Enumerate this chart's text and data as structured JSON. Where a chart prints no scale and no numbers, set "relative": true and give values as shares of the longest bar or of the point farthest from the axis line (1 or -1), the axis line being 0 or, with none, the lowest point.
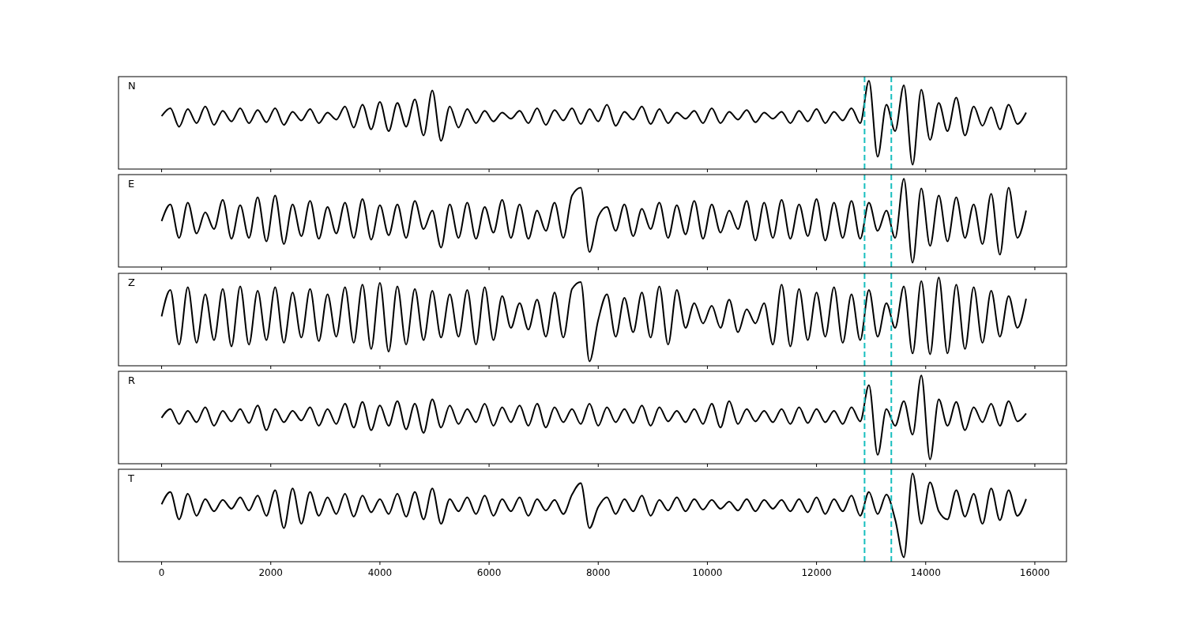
{
  "chart_data": [
    {
      "type": "line",
      "annotations": [
        "N"
      ],
      "relative": true,
      "xlim": [
        -790,
        16580
      ],
      "xticks": [
        0,
        2000,
        4000,
        6000,
        8000,
        10000,
        12000,
        14000,
        16000
      ],
      "tick_labels": false,
      "x": [
        0,
        160,
        320,
        480,
        640,
        800,
        960,
        1120,
        1280,
        1440,
        1600,
        1760,
        1920,
        2080,
        2240,
        2400,
        2560,
        2720,
        2880,
        3040,
        3200,
        3360,
        3520,
        3680,
        3840,
        4000,
        4160,
        4320,
        4480,
        4640,
        4800,
        4960,
        5120,
        5280,
        5440,
        5600,
        5760,
        5920,
        6080,
        6240,
        6400,
        6560,
        6720,
        6880,
        7040,
        7200,
        7360,
        7520,
        7680,
        7840,
        8000,
        8160,
        8320,
        8480,
        8640,
        8800,
        8960,
        9120,
        9280,
        9440,
        9600,
        9760,
        9920,
        10080,
        10240,
        10400,
        10560,
        10720,
        10880,
        11040,
        11200,
        11360,
        11520,
        11680,
        11840,
        12000,
        12160,
        12320,
        12480,
        12640,
        12800,
        12960,
        13120,
        13280,
        13440,
        13600,
        13760,
        13920,
        14080,
        14240,
        14400,
        14560,
        14720,
        14880,
        15040,
        15200,
        15360,
        15520,
        15680,
        15840
      ],
      "series": [
        {
          "color": "#000000",
          "values": [
            0.6,
            0.69,
            0.48,
            0.68,
            0.52,
            0.71,
            0.5,
            0.66,
            0.54,
            0.69,
            0.52,
            0.67,
            0.53,
            0.69,
            0.5,
            0.65,
            0.55,
            0.68,
            0.52,
            0.64,
            0.56,
            0.71,
            0.47,
            0.73,
            0.45,
            0.76,
            0.43,
            0.75,
            0.48,
            0.79,
            0.38,
            0.89,
            0.32,
            0.71,
            0.47,
            0.68,
            0.52,
            0.66,
            0.54,
            0.64,
            0.57,
            0.66,
            0.52,
            0.69,
            0.5,
            0.67,
            0.55,
            0.69,
            0.51,
            0.68,
            0.54,
            0.73,
            0.49,
            0.65,
            0.56,
            0.71,
            0.51,
            0.68,
            0.52,
            0.64,
            0.57,
            0.66,
            0.52,
            0.69,
            0.52,
            0.65,
            0.56,
            0.67,
            0.53,
            0.64,
            0.57,
            0.65,
            0.52,
            0.66,
            0.54,
            0.68,
            0.52,
            0.65,
            0.55,
            0.69,
            0.52,
            1.0,
            0.14,
            0.73,
            0.43,
            0.95,
            0.05,
            0.9,
            0.33,
            0.75,
            0.43,
            0.81,
            0.38,
            0.71,
            0.49,
            0.7,
            0.45,
            0.73,
            0.51,
            0.64
          ]
        }
      ],
      "ref_lines": [
        {
          "axis": "x",
          "value": 12880,
          "color": "#17bebe",
          "line_style": "dashed"
        },
        {
          "axis": "x",
          "value": 13370,
          "color": "#17bebe",
          "line_style": "dashed"
        }
      ]
    },
    {
      "type": "line",
      "annotations": [
        "E"
      ],
      "relative": true,
      "xlim": [
        -790,
        16580
      ],
      "xticks": [
        0,
        2000,
        4000,
        6000,
        8000,
        10000,
        12000,
        14000,
        16000
      ],
      "tick_labels": false,
      "x": [
        0,
        160,
        320,
        480,
        640,
        800,
        960,
        1120,
        1280,
        1440,
        1600,
        1760,
        1920,
        2080,
        2240,
        2400,
        2560,
        2720,
        2880,
        3040,
        3200,
        3360,
        3520,
        3680,
        3840,
        4000,
        4160,
        4320,
        4480,
        4640,
        4800,
        4960,
        5120,
        5280,
        5440,
        5600,
        5760,
        5920,
        6080,
        6240,
        6400,
        6560,
        6720,
        6880,
        7040,
        7200,
        7360,
        7520,
        7680,
        7840,
        8000,
        8160,
        8320,
        8480,
        8640,
        8800,
        8960,
        9120,
        9280,
        9440,
        9600,
        9760,
        9920,
        10080,
        10240,
        10400,
        10560,
        10720,
        10880,
        11040,
        11200,
        11360,
        11520,
        11680,
        11840,
        12000,
        12160,
        12320,
        12480,
        12640,
        12800,
        12960,
        13120,
        13280,
        13440,
        13600,
        13760,
        13920,
        14080,
        14240,
        14400,
        14560,
        14720,
        14880,
        15040,
        15200,
        15360,
        15520,
        15680,
        15840
      ],
      "series": [
        {
          "color": "#000000",
          "values": [
            0.52,
            0.71,
            0.33,
            0.73,
            0.38,
            0.62,
            0.43,
            0.76,
            0.32,
            0.7,
            0.33,
            0.79,
            0.29,
            0.81,
            0.26,
            0.71,
            0.35,
            0.75,
            0.32,
            0.68,
            0.38,
            0.73,
            0.33,
            0.77,
            0.31,
            0.7,
            0.36,
            0.71,
            0.33,
            0.75,
            0.43,
            0.64,
            0.22,
            0.71,
            0.33,
            0.73,
            0.32,
            0.68,
            0.39,
            0.76,
            0.33,
            0.71,
            0.32,
            0.64,
            0.41,
            0.73,
            0.33,
            0.81,
            0.9,
            0.17,
            0.57,
            0.68,
            0.41,
            0.71,
            0.35,
            0.66,
            0.43,
            0.73,
            0.33,
            0.7,
            0.37,
            0.75,
            0.32,
            0.71,
            0.39,
            0.64,
            0.43,
            0.75,
            0.3,
            0.73,
            0.33,
            0.76,
            0.32,
            0.71,
            0.35,
            0.77,
            0.3,
            0.73,
            0.33,
            0.75,
            0.32,
            0.73,
            0.41,
            0.64,
            0.33,
            1.0,
            0.05,
            0.89,
            0.24,
            0.81,
            0.29,
            0.79,
            0.33,
            0.71,
            0.26,
            0.83,
            0.14,
            0.9,
            0.33,
            0.64
          ]
        }
      ],
      "ref_lines": [
        {
          "axis": "x",
          "value": 12880,
          "color": "#17bebe",
          "line_style": "dashed"
        },
        {
          "axis": "x",
          "value": 13370,
          "color": "#17bebe",
          "line_style": "dashed"
        }
      ]
    },
    {
      "type": "line",
      "annotations": [
        "Z"
      ],
      "relative": true,
      "xlim": [
        -790,
        16580
      ],
      "xticks": [
        0,
        2000,
        4000,
        6000,
        8000,
        10000,
        12000,
        14000,
        16000
      ],
      "tick_labels": false,
      "x": [
        0,
        160,
        320,
        480,
        640,
        800,
        960,
        1120,
        1280,
        1440,
        1600,
        1760,
        1920,
        2080,
        2240,
        2400,
        2560,
        2720,
        2880,
        3040,
        3200,
        3360,
        3520,
        3680,
        3840,
        4000,
        4160,
        4320,
        4480,
        4640,
        4800,
        4960,
        5120,
        5280,
        5440,
        5600,
        5760,
        5920,
        6080,
        6240,
        6400,
        6560,
        6720,
        6880,
        7040,
        7200,
        7360,
        7520,
        7680,
        7840,
        8000,
        8160,
        8320,
        8480,
        8640,
        8800,
        8960,
        9120,
        9280,
        9440,
        9600,
        9760,
        9920,
        10080,
        10240,
        10400,
        10560,
        10720,
        10880,
        11040,
        11200,
        11360,
        11520,
        11680,
        11840,
        12000,
        12160,
        12320,
        12480,
        12640,
        12800,
        12960,
        13120,
        13280,
        13440,
        13600,
        13760,
        13920,
        14080,
        14240,
        14400,
        14560,
        14720,
        14880,
        15040,
        15200,
        15360,
        15520,
        15680,
        15840
      ],
      "series": [
        {
          "color": "#000000",
          "values": [
            0.56,
            0.86,
            0.24,
            0.89,
            0.26,
            0.81,
            0.29,
            0.87,
            0.22,
            0.9,
            0.24,
            0.85,
            0.29,
            0.89,
            0.26,
            0.83,
            0.32,
            0.87,
            0.28,
            0.81,
            0.33,
            0.89,
            0.26,
            0.92,
            0.19,
            0.94,
            0.16,
            0.9,
            0.24,
            0.87,
            0.29,
            0.85,
            0.32,
            0.81,
            0.33,
            0.86,
            0.24,
            0.89,
            0.29,
            0.79,
            0.43,
            0.71,
            0.41,
            0.75,
            0.33,
            0.83,
            0.32,
            0.87,
            0.95,
            0.05,
            0.52,
            0.81,
            0.33,
            0.77,
            0.38,
            0.83,
            0.32,
            0.9,
            0.24,
            0.86,
            0.43,
            0.71,
            0.48,
            0.68,
            0.43,
            0.75,
            0.38,
            0.64,
            0.48,
            0.71,
            0.24,
            0.92,
            0.22,
            0.87,
            0.29,
            0.83,
            0.33,
            0.89,
            0.26,
            0.81,
            0.29,
            0.86,
            0.33,
            0.71,
            0.43,
            0.9,
            0.14,
            0.96,
            0.13,
            1.0,
            0.14,
            0.92,
            0.19,
            0.89,
            0.26,
            0.85,
            0.33,
            0.79,
            0.43,
            0.76
          ]
        }
      ],
      "ref_lines": [
        {
          "axis": "x",
          "value": 12880,
          "color": "#17bebe",
          "line_style": "dashed"
        },
        {
          "axis": "x",
          "value": 13370,
          "color": "#17bebe",
          "line_style": "dashed"
        }
      ]
    },
    {
      "type": "line",
      "annotations": [
        "R"
      ],
      "relative": true,
      "xlim": [
        -790,
        16580
      ],
      "xticks": [
        0,
        2000,
        4000,
        6000,
        8000,
        10000,
        12000,
        14000,
        16000
      ],
      "tick_labels": false,
      "x": [
        0,
        160,
        320,
        480,
        640,
        800,
        960,
        1120,
        1280,
        1440,
        1600,
        1760,
        1920,
        2080,
        2240,
        2400,
        2560,
        2720,
        2880,
        3040,
        3200,
        3360,
        3520,
        3680,
        3840,
        4000,
        4160,
        4320,
        4480,
        4640,
        4800,
        4960,
        5120,
        5280,
        5440,
        5600,
        5760,
        5920,
        6080,
        6240,
        6400,
        6560,
        6720,
        6880,
        7040,
        7200,
        7360,
        7520,
        7680,
        7840,
        8000,
        8160,
        8320,
        8480,
        8640,
        8800,
        8960,
        9120,
        9280,
        9440,
        9600,
        9760,
        9920,
        10080,
        10240,
        10400,
        10560,
        10720,
        10880,
        11040,
        11200,
        11360,
        11520,
        11680,
        11840,
        12000,
        12160,
        12320,
        12480,
        12640,
        12800,
        12960,
        13120,
        13280,
        13440,
        13600,
        13760,
        13920,
        14080,
        14240,
        14400,
        14560,
        14720,
        14880,
        15040,
        15200,
        15360,
        15520,
        15680,
        15840
      ],
      "series": [
        {
          "color": "#000000",
          "values": [
            0.52,
            0.62,
            0.45,
            0.6,
            0.47,
            0.64,
            0.43,
            0.6,
            0.48,
            0.62,
            0.46,
            0.66,
            0.38,
            0.62,
            0.47,
            0.6,
            0.49,
            0.64,
            0.43,
            0.62,
            0.45,
            0.68,
            0.41,
            0.7,
            0.38,
            0.66,
            0.43,
            0.71,
            0.39,
            0.68,
            0.35,
            0.73,
            0.41,
            0.66,
            0.45,
            0.62,
            0.47,
            0.68,
            0.43,
            0.64,
            0.47,
            0.66,
            0.43,
            0.68,
            0.41,
            0.64,
            0.47,
            0.62,
            0.45,
            0.68,
            0.43,
            0.64,
            0.47,
            0.62,
            0.46,
            0.66,
            0.43,
            0.64,
            0.48,
            0.6,
            0.47,
            0.62,
            0.45,
            0.68,
            0.41,
            0.71,
            0.45,
            0.62,
            0.48,
            0.6,
            0.47,
            0.62,
            0.45,
            0.64,
            0.46,
            0.62,
            0.47,
            0.6,
            0.45,
            0.64,
            0.48,
            0.89,
            0.1,
            0.62,
            0.43,
            0.71,
            0.33,
            1.0,
            0.05,
            0.73,
            0.43,
            0.7,
            0.38,
            0.64,
            0.47,
            0.68,
            0.43,
            0.71,
            0.48,
            0.57
          ]
        }
      ],
      "ref_lines": [
        {
          "axis": "x",
          "value": 12880,
          "color": "#17bebe",
          "line_style": "dashed"
        },
        {
          "axis": "x",
          "value": 13370,
          "color": "#17bebe",
          "line_style": "dashed"
        }
      ]
    },
    {
      "type": "line",
      "annotations": [
        "T"
      ],
      "relative": true,
      "xlim": [
        -790,
        16580
      ],
      "xticks": [
        0,
        2000,
        4000,
        6000,
        8000,
        10000,
        12000,
        14000,
        16000
      ],
      "tick_labels": "x",
      "x": [
        0,
        160,
        320,
        480,
        640,
        800,
        960,
        1120,
        1280,
        1440,
        1600,
        1760,
        1920,
        2080,
        2240,
        2400,
        2560,
        2720,
        2880,
        3040,
        3200,
        3360,
        3520,
        3680,
        3840,
        4000,
        4160,
        4320,
        4480,
        4640,
        4800,
        4960,
        5120,
        5280,
        5440,
        5600,
        5760,
        5920,
        6080,
        6240,
        6400,
        6560,
        6720,
        6880,
        7040,
        7200,
        7360,
        7520,
        7680,
        7840,
        8000,
        8160,
        8320,
        8480,
        8640,
        8800,
        8960,
        9120,
        9280,
        9440,
        9600,
        9760,
        9920,
        10080,
        10240,
        10400,
        10560,
        10720,
        10880,
        11040,
        11200,
        11360,
        11520,
        11680,
        11840,
        12000,
        12160,
        12320,
        12480,
        12640,
        12800,
        12960,
        13120,
        13280,
        13440,
        13600,
        13760,
        13920,
        14080,
        14240,
        14400,
        14560,
        14720,
        14880,
        15040,
        15200,
        15360,
        15520,
        15680,
        15840
      ],
      "series": [
        {
          "color": "#000000",
          "values": [
            0.65,
            0.79,
            0.48,
            0.77,
            0.52,
            0.71,
            0.57,
            0.7,
            0.6,
            0.73,
            0.58,
            0.75,
            0.52,
            0.81,
            0.38,
            0.83,
            0.43,
            0.79,
            0.52,
            0.73,
            0.54,
            0.77,
            0.51,
            0.75,
            0.56,
            0.71,
            0.54,
            0.77,
            0.51,
            0.79,
            0.48,
            0.83,
            0.43,
            0.71,
            0.57,
            0.73,
            0.54,
            0.75,
            0.52,
            0.71,
            0.57,
            0.73,
            0.52,
            0.71,
            0.58,
            0.7,
            0.54,
            0.76,
            0.89,
            0.38,
            0.62,
            0.73,
            0.54,
            0.71,
            0.57,
            0.75,
            0.52,
            0.7,
            0.58,
            0.73,
            0.57,
            0.71,
            0.59,
            0.7,
            0.6,
            0.68,
            0.58,
            0.71,
            0.57,
            0.7,
            0.6,
            0.7,
            0.57,
            0.71,
            0.56,
            0.73,
            0.54,
            0.71,
            0.57,
            0.75,
            0.52,
            0.79,
            0.54,
            0.76,
            0.48,
            0.05,
            1.0,
            0.43,
            0.9,
            0.57,
            0.48,
            0.81,
            0.51,
            0.77,
            0.43,
            0.83,
            0.47,
            0.81,
            0.52,
            0.71
          ]
        }
      ],
      "ref_lines": [
        {
          "axis": "x",
          "value": 12880,
          "color": "#17bebe",
          "line_style": "dashed"
        },
        {
          "axis": "x",
          "value": 13370,
          "color": "#17bebe",
          "line_style": "dashed"
        }
      ]
    }
  ]
}
